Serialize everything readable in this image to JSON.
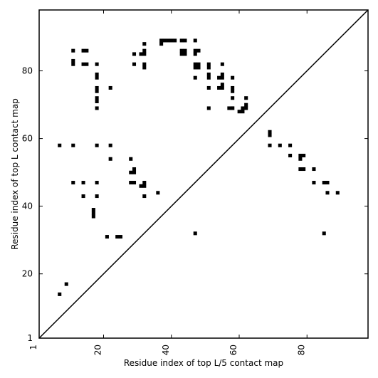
{
  "chart_data": {
    "type": "heatmap",
    "title": "",
    "xlabel": "Residue index of top L/5 contact map",
    "ylabel": "Residue index of top L contact map",
    "xlim": [
      1,
      98
    ],
    "ylim": [
      1,
      98
    ],
    "xticks": [
      1,
      20,
      40,
      60,
      80
    ],
    "yticks": [
      1,
      20,
      40,
      60,
      80
    ],
    "xtick_labels": [
      "1",
      "20",
      "40",
      "60",
      "80"
    ],
    "ytick_labels": [
      "1",
      "20",
      "40",
      "60",
      "80"
    ],
    "x_tick_label_rotation": 270,
    "grid": false,
    "colors": {
      "cell": "#000000",
      "background": "#ffffff",
      "frame": "#000000",
      "diagonal": "#000000"
    },
    "diagonal_line": true,
    "lower_triangle_points": [
      [
        47,
        32
      ],
      [
        69,
        61
      ],
      [
        69,
        62
      ],
      [
        69,
        58
      ],
      [
        72,
        58
      ],
      [
        75,
        58
      ],
      [
        75,
        55
      ],
      [
        78,
        55
      ],
      [
        79,
        55
      ],
      [
        78,
        54
      ],
      [
        78,
        51
      ],
      [
        79,
        51
      ],
      [
        82,
        51
      ],
      [
        82,
        47
      ],
      [
        85,
        47
      ],
      [
        86,
        47
      ],
      [
        86,
        44
      ],
      [
        89,
        44
      ],
      [
        85,
        32
      ],
      [
        57,
        69
      ],
      [
        58,
        69
      ],
      [
        60,
        68
      ],
      [
        61,
        68
      ],
      [
        61,
        69
      ],
      [
        62,
        69
      ],
      [
        62,
        70
      ],
      [
        62,
        72
      ]
    ],
    "upper_triangle_points": [
      [
        7,
        14
      ],
      [
        9,
        17
      ],
      [
        7,
        58
      ],
      [
        11,
        58
      ],
      [
        11,
        47
      ],
      [
        14,
        47
      ],
      [
        14,
        43
      ],
      [
        18,
        43
      ],
      [
        18,
        47
      ],
      [
        18,
        58
      ],
      [
        22,
        58
      ],
      [
        22,
        54
      ],
      [
        17,
        37
      ],
      [
        17,
        38
      ],
      [
        17,
        39
      ],
      [
        21,
        31
      ],
      [
        24,
        31
      ],
      [
        25,
        31
      ],
      [
        28,
        54
      ],
      [
        28,
        50
      ],
      [
        29,
        50
      ],
      [
        29,
        51
      ],
      [
        28,
        47
      ],
      [
        29,
        47
      ],
      [
        31,
        46
      ],
      [
        32,
        46
      ],
      [
        32,
        47
      ],
      [
        32,
        43
      ],
      [
        36,
        44
      ],
      [
        11,
        82
      ],
      [
        11,
        83
      ],
      [
        11,
        86
      ],
      [
        14,
        82
      ],
      [
        15,
        82
      ],
      [
        14,
        86
      ],
      [
        15,
        86
      ],
      [
        18,
        82
      ],
      [
        18,
        78
      ],
      [
        18,
        79
      ],
      [
        18,
        75
      ],
      [
        18,
        74
      ],
      [
        18,
        72
      ],
      [
        18,
        71
      ],
      [
        18,
        69
      ],
      [
        22,
        75
      ],
      [
        29,
        85
      ],
      [
        29,
        82
      ],
      [
        31,
        85
      ],
      [
        32,
        85
      ],
      [
        32,
        86
      ],
      [
        32,
        88
      ],
      [
        32,
        82
      ],
      [
        32,
        81
      ],
      [
        37,
        88
      ],
      [
        37,
        89
      ],
      [
        38,
        89
      ],
      [
        39,
        89
      ],
      [
        40,
        89
      ],
      [
        41,
        89
      ],
      [
        43,
        89
      ],
      [
        44,
        89
      ],
      [
        43,
        85
      ],
      [
        44,
        85
      ],
      [
        43,
        86
      ],
      [
        44,
        86
      ],
      [
        47,
        89
      ],
      [
        47,
        86
      ],
      [
        47,
        85
      ],
      [
        48,
        86
      ],
      [
        47,
        82
      ],
      [
        47,
        81
      ],
      [
        48,
        82
      ],
      [
        48,
        81
      ],
      [
        47,
        78
      ],
      [
        51,
        82
      ],
      [
        51,
        81
      ],
      [
        51,
        79
      ],
      [
        51,
        78
      ],
      [
        51,
        75
      ],
      [
        51,
        69
      ],
      [
        54,
        75
      ],
      [
        55,
        75
      ],
      [
        55,
        76
      ],
      [
        54,
        78
      ],
      [
        55,
        78
      ],
      [
        55,
        79
      ],
      [
        55,
        82
      ],
      [
        58,
        78
      ],
      [
        58,
        75
      ],
      [
        58,
        74
      ],
      [
        58,
        72
      ],
      [
        58,
        69
      ]
    ]
  }
}
